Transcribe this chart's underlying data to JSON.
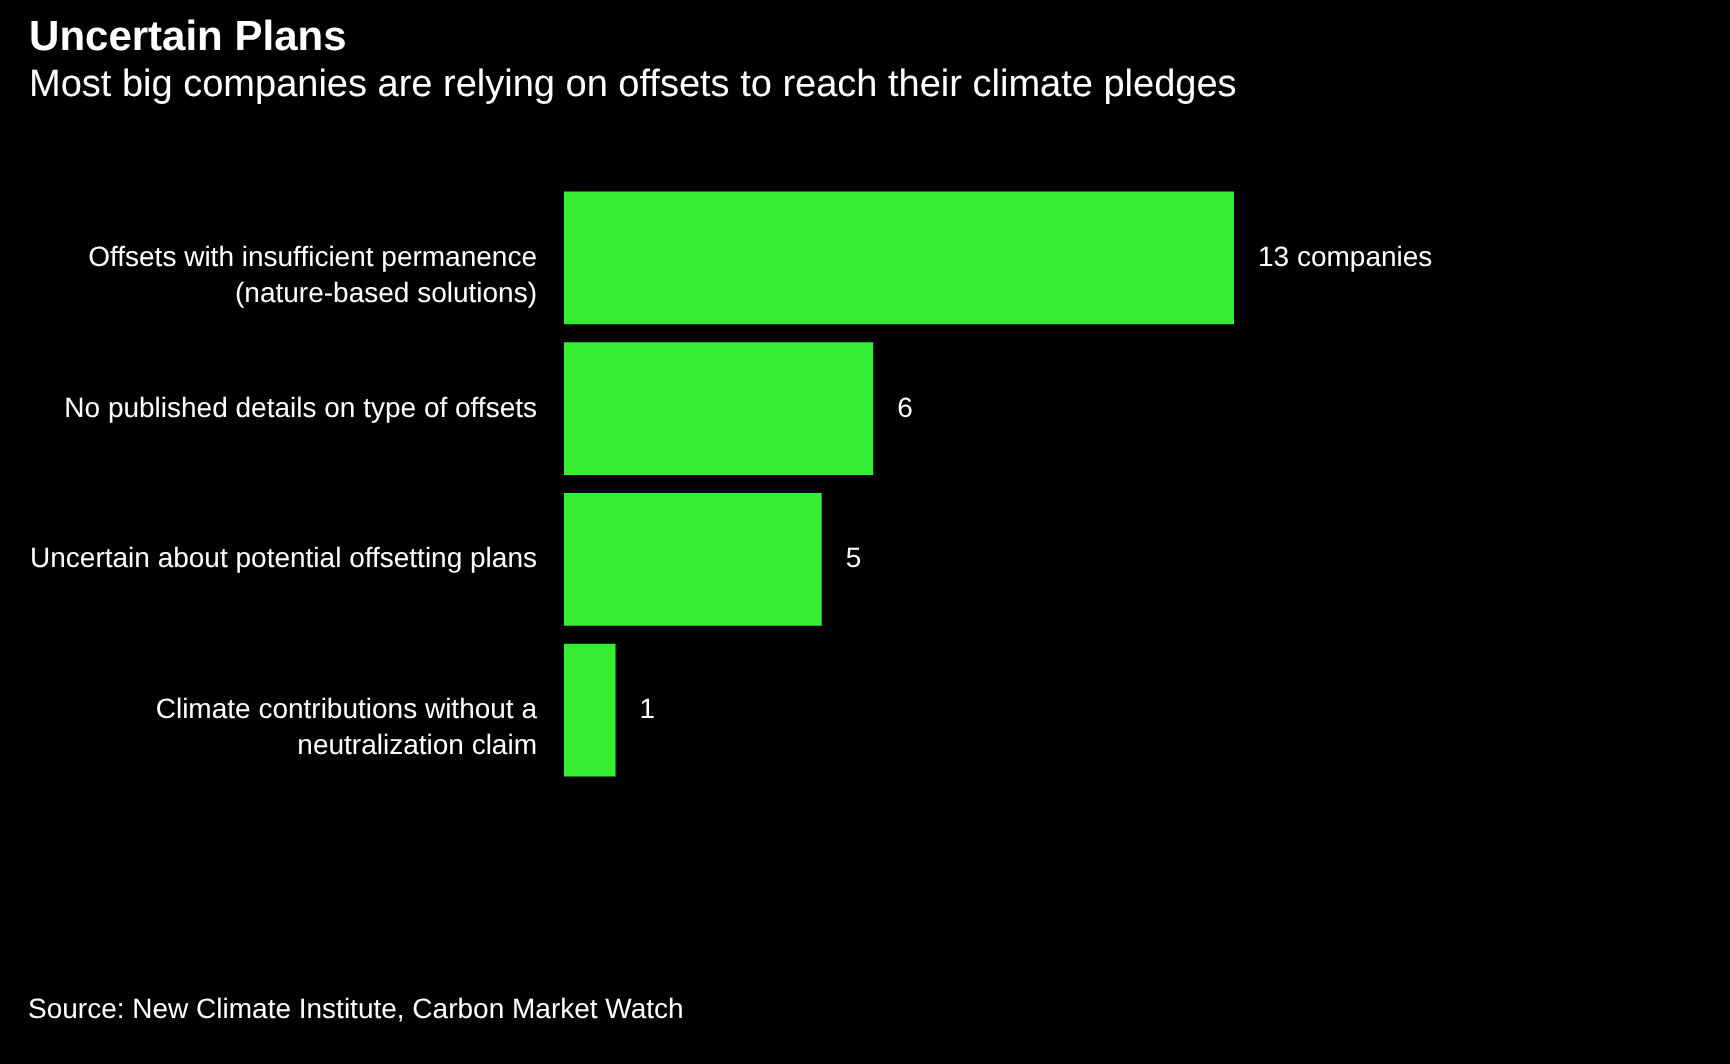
{
  "chart_data": {
    "type": "bar",
    "orientation": "horizontal",
    "title": "Uncertain Plans",
    "subtitle": "Most big companies are relying on offsets to reach their climate pledges",
    "categories": [
      "Offsets with insufficient permanence (nature-based solutions)",
      "No published details on type of offsets",
      "Uncertain about potential offsetting plans",
      "Climate contributions without a neutralization claim"
    ],
    "values": [
      13,
      6,
      5,
      1
    ],
    "color": "#33ee33",
    "value_labels": [
      "13 companies",
      "6",
      "5",
      "1"
    ],
    "annotations": [
      "Source: New Climate Institute, Carbon Market Watch"
    ]
  }
}
